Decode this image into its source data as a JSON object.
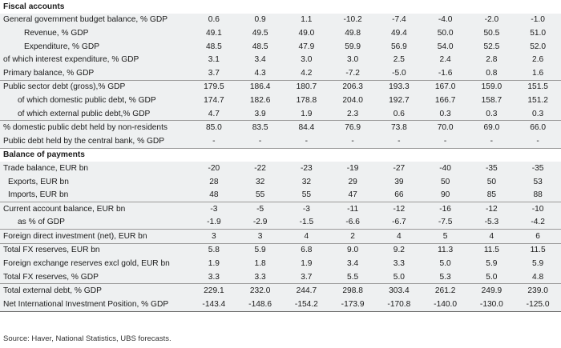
{
  "sections": [
    {
      "title": "Fiscal accounts",
      "rows": [
        {
          "label": "General government budget balance, % GDP",
          "indent": 0,
          "values": [
            "0.6",
            "0.9",
            "1.1",
            "-10.2",
            "-7.4",
            "-4.0",
            "-2.0",
            "-1.0"
          ]
        },
        {
          "label": "Revenue, % GDP",
          "indent": 2,
          "values": [
            "49.1",
            "49.5",
            "49.0",
            "49.8",
            "49.4",
            "50.0",
            "50.5",
            "51.0"
          ]
        },
        {
          "label": "Expenditure, % GDP",
          "indent": 2,
          "values": [
            "48.5",
            "48.5",
            "47.9",
            "59.9",
            "56.9",
            "54.0",
            "52.5",
            "52.0"
          ]
        },
        {
          "label": "of which interest expenditure, % GDP",
          "indent": 0,
          "values": [
            "3.1",
            "3.4",
            "3.0",
            "3.0",
            "2.5",
            "2.4",
            "2.8",
            "2.6"
          ]
        },
        {
          "label": "Primary balance, % GDP",
          "indent": 0,
          "values": [
            "3.7",
            "4.3",
            "4.2",
            "-7.2",
            "-5.0",
            "-1.6",
            "0.8",
            "1.6"
          ]
        },
        {
          "label": "Public sector debt (gross),% GDP",
          "indent": 0,
          "values": [
            "179.5",
            "186.4",
            "180.7",
            "206.3",
            "193.3",
            "167.0",
            "159.0",
            "151.5"
          ]
        },
        {
          "label": "of which domestic public debt, % GDP",
          "indent": 1,
          "values": [
            "174.7",
            "182.6",
            "178.8",
            "204.0",
            "192.7",
            "166.7",
            "158.7",
            "151.2"
          ]
        },
        {
          "label": "of which external public debt,% GDP",
          "indent": 1,
          "values": [
            "4.7",
            "3.9",
            "1.9",
            "2.3",
            "0.6",
            "0.3",
            "0.3",
            "0.3"
          ]
        },
        {
          "label": "% domestic public debt held by non-residents",
          "indent": 0,
          "values": [
            "85.0",
            "83.5",
            "84.4",
            "76.9",
            "73.8",
            "70.0",
            "69.0",
            "66.0"
          ]
        },
        {
          "label": "Public debt held by the central bank, % GDP",
          "indent": 0,
          "values": [
            "-",
            "-",
            "-",
            "-",
            "-",
            "-",
            "-",
            "-"
          ]
        }
      ]
    },
    {
      "title": "Balance of payments",
      "rows": [
        {
          "label": "Trade balance, EUR bn",
          "indent": 0,
          "values": [
            "-20",
            "-22",
            "-23",
            "-19",
            "-27",
            "-40",
            "-35",
            "-35"
          ]
        },
        {
          "label": "Exports, EUR bn",
          "indent": 3,
          "values": [
            "28",
            "32",
            "32",
            "29",
            "39",
            "50",
            "50",
            "53"
          ]
        },
        {
          "label": "Imports, EUR bn",
          "indent": 3,
          "values": [
            "48",
            "55",
            "55",
            "47",
            "66",
            "90",
            "85",
            "88"
          ]
        },
        {
          "label": "Current account balance, EUR bn",
          "indent": 0,
          "values": [
            "-3",
            "-5",
            "-3",
            "-11",
            "-12",
            "-16",
            "-12",
            "-10"
          ]
        },
        {
          "label": "as % of GDP",
          "indent": 1,
          "values": [
            "-1.9",
            "-2.9",
            "-1.5",
            "-6.6",
            "-6.7",
            "-7.5",
            "-5.3",
            "-4.2"
          ]
        },
        {
          "label": "Foreign direct investment (net), EUR bn",
          "indent": 0,
          "values": [
            "3",
            "3",
            "4",
            "2",
            "4",
            "5",
            "4",
            "6"
          ]
        },
        {
          "label": "Total FX reserves, EUR bn",
          "indent": 0,
          "values": [
            "5.8",
            "5.9",
            "6.8",
            "9.0",
            "9.2",
            "11.3",
            "11.5",
            "11.5"
          ]
        },
        {
          "label": "Foreign exchange reserves excl gold, EUR bn",
          "indent": 0,
          "values": [
            "1.9",
            "1.8",
            "1.9",
            "3.4",
            "3.3",
            "5.0",
            "5.9",
            "5.9"
          ]
        },
        {
          "label": "Total FX reserves, % GDP",
          "indent": 0,
          "values": [
            "3.3",
            "3.3",
            "3.7",
            "5.5",
            "5.0",
            "5.3",
            "5.0",
            "4.8"
          ]
        },
        {
          "label": "Total external debt, % GDP",
          "indent": 0,
          "values": [
            "229.1",
            "232.0",
            "244.7",
            "298.8",
            "303.4",
            "261.2",
            "249.9",
            "239.0"
          ]
        },
        {
          "label": "Net International Investment Position, % GDP",
          "indent": 0,
          "values": [
            "-143.4",
            "-148.6",
            "-154.2",
            "-173.9",
            "-170.8",
            "-140.0",
            "-130.0",
            "-125.0"
          ]
        }
      ]
    }
  ],
  "source": "Source: Haver, National Statistics, UBS forecasts."
}
